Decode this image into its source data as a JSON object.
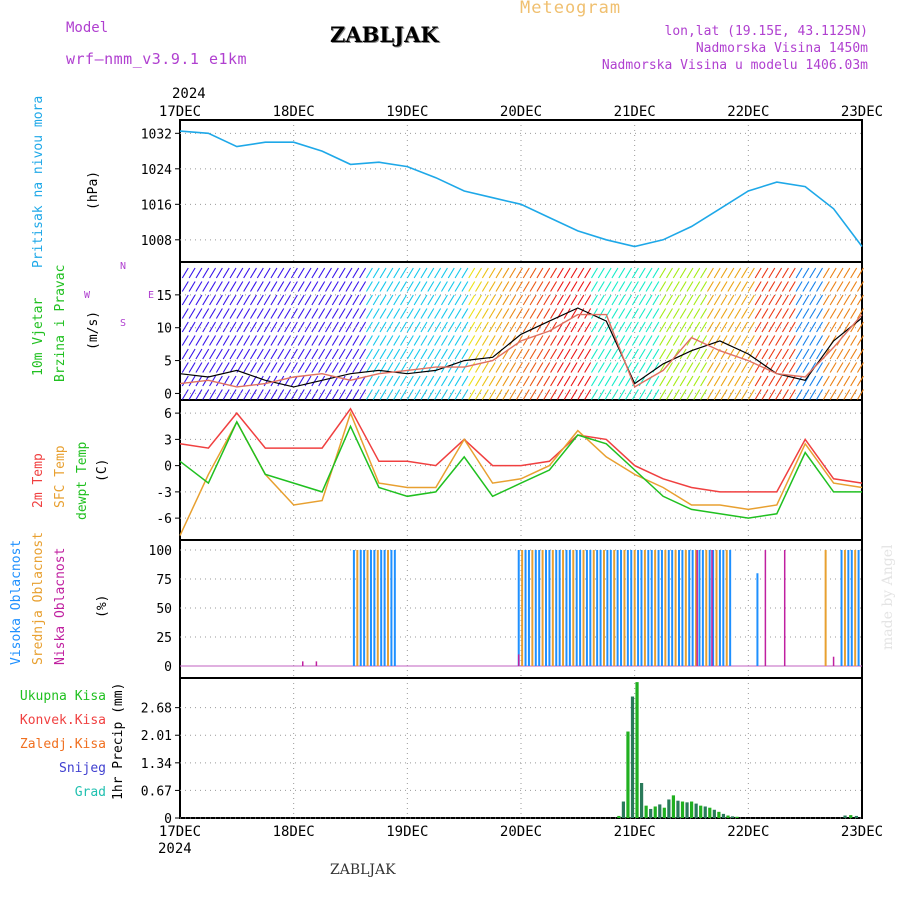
{
  "header": {
    "model_label": "Model",
    "model_name": "wrf–nmm_v3.9.1  e1km",
    "station": "ZABLJAK",
    "title": "Meteogram",
    "lonlat": "lon,lat (19.15E, 43.1125N)",
    "elevation": "Nadmorska Visina 1450m",
    "model_elevation": "Nadmorska Visina u modelu 1406.03m",
    "footer": "ZABLJAK",
    "made_by": "made by Angel"
  },
  "colors": {
    "pressure": "#1ea8e8",
    "temp2m": "#f04040",
    "sfc": "#e8a030",
    "dew": "#20c020",
    "high_cloud": "#1e90ff",
    "mid_cloud": "#e8a030",
    "low_cloud": "#c020a0",
    "precip_total": "#20b020",
    "precip_snow": "#4040d0"
  },
  "chart_data": [
    {
      "type": "line",
      "panel": "pressure",
      "ylabel": "Pritisak na nivou mora",
      "unit": "(hPa)",
      "x_ticks": [
        "17DEC",
        "18DEC",
        "19DEC",
        "20DEC",
        "21DEC",
        "22DEC",
        "23DEC"
      ],
      "year_top": "2024",
      "year_bottom": "2024",
      "yticks": [
        "1032",
        "1024",
        "1016",
        "1008"
      ],
      "ylim": [
        1003,
        1035
      ],
      "x": [
        0,
        0.25,
        0.5,
        0.75,
        1.0,
        1.25,
        1.5,
        1.75,
        2.0,
        2.25,
        2.5,
        2.75,
        3.0,
        3.25,
        3.5,
        3.75,
        4.0,
        4.25,
        4.5,
        4.75,
        5.0,
        5.25,
        5.5,
        5.75,
        6.0
      ],
      "series": [
        {
          "values": [
            1032.5,
            1032,
            1029,
            1030,
            1030,
            1028,
            1025,
            1025.5,
            1024.5,
            1022,
            1019,
            1017.5,
            1016,
            1013,
            1010,
            1008,
            1006.5,
            1008,
            1011,
            1015,
            1019,
            1021,
            1020,
            1015,
            1006.5
          ]
        }
      ]
    },
    {
      "type": "line",
      "panel": "wind",
      "ylabel_1": "10m Vjetar",
      "ylabel_2": "Brzina i Pravac",
      "unit": "(m/s)",
      "yticks": [
        "15",
        "10",
        "5",
        "0"
      ],
      "ylim": [
        -1,
        20
      ],
      "compass": [
        "N",
        "E",
        "S",
        "W"
      ],
      "x": [
        0,
        0.25,
        0.5,
        0.75,
        1.0,
        1.25,
        1.5,
        1.75,
        2.0,
        2.25,
        2.5,
        2.75,
        3.0,
        3.25,
        3.5,
        3.75,
        4.0,
        4.25,
        4.5,
        4.75,
        5.0,
        5.25,
        5.5,
        5.75,
        6.0
      ],
      "series": [
        {
          "values": [
            3.0,
            2.5,
            3.5,
            2.0,
            1.0,
            2.0,
            3.0,
            3.5,
            3.0,
            3.5,
            5.0,
            5.5,
            9.0,
            11.0,
            13.0,
            11.0,
            1.5,
            4.5,
            6.5,
            8.0,
            6.0,
            3.0,
            2.0,
            8.0,
            11.5
          ]
        },
        {
          "values": [
            1.5,
            2.0,
            1.0,
            1.5,
            2.5,
            3.0,
            2.0,
            3.0,
            3.5,
            4.0,
            4.0,
            5.0,
            8.0,
            9.5,
            12.0,
            12.0,
            1.0,
            3.5,
            8.5,
            6.5,
            5.0,
            3.0,
            2.5,
            7.0,
            12.0
          ]
        }
      ]
    },
    {
      "type": "line",
      "panel": "temperature",
      "labels": [
        "2m Temp",
        "SFC Temp",
        "dewpt Temp"
      ],
      "unit": "(C)",
      "yticks": [
        "6",
        "3",
        "0",
        "-3",
        "-6"
      ],
      "ylim": [
        -8.5,
        7.5
      ],
      "x": [
        0,
        0.25,
        0.5,
        0.75,
        1.0,
        1.25,
        1.5,
        1.75,
        2.0,
        2.25,
        2.5,
        2.75,
        3.0,
        3.25,
        3.5,
        3.75,
        4.0,
        4.25,
        4.5,
        4.75,
        5.0,
        5.25,
        5.5,
        5.75,
        6.0
      ],
      "series": [
        {
          "name": "2m Temp",
          "values": [
            2.5,
            2.0,
            6.0,
            2.0,
            2.0,
            2.0,
            6.5,
            0.5,
            0.5,
            0.0,
            3.0,
            0.0,
            0.0,
            0.5,
            3.5,
            3.0,
            0.0,
            -1.5,
            -2.5,
            -3.0,
            -3.0,
            -3.0,
            3.0,
            -1.5,
            -2.0
          ]
        },
        {
          "name": "SFC Temp",
          "values": [
            -8.0,
            -1.0,
            5.0,
            -1.0,
            -4.5,
            -4.0,
            6.0,
            -2.0,
            -2.5,
            -2.5,
            3.0,
            -2.0,
            -1.5,
            0.0,
            4.0,
            1.0,
            -1.0,
            -2.5,
            -4.5,
            -4.5,
            -5.0,
            -4.5,
            2.5,
            -2.0,
            -2.5
          ]
        },
        {
          "name": "dewpt Temp",
          "values": [
            0.5,
            -2.0,
            5.0,
            -1.0,
            -2.0,
            -3.0,
            4.5,
            -2.5,
            -3.5,
            -3.0,
            1.0,
            -3.5,
            -2.0,
            -0.5,
            3.5,
            2.5,
            -0.5,
            -3.5,
            -5.0,
            -5.5,
            -6.0,
            -5.5,
            1.5,
            -3.0,
            -3.0
          ]
        }
      ]
    },
    {
      "type": "bar",
      "panel": "clouds",
      "labels": [
        "Visoka Oblacnost",
        "Srednja Oblacnost",
        "Niska Oblacnost"
      ],
      "unit": "(%)",
      "yticks": [
        "100",
        "75",
        "50",
        "25",
        "0"
      ],
      "ylim": [
        0,
        100
      ],
      "bar_groups": [
        {
          "x_start": 1.53,
          "x_end": 1.9,
          "high": 100,
          "mid": 100
        },
        {
          "x_start": 2.98,
          "x_end": 4.85,
          "high": 100,
          "mid": 100
        },
        {
          "x_start": 5.82,
          "x_end": 6.0,
          "high": 100,
          "mid": 100
        }
      ],
      "low_cloud_spikes": [
        {
          "x": 1.08,
          "value": 4
        },
        {
          "x": 1.2,
          "value": 4
        },
        {
          "x": 2.98,
          "value": 10
        },
        {
          "x": 4.55,
          "value": 100
        },
        {
          "x": 4.68,
          "value": 100
        },
        {
          "x": 5.15,
          "value": 100
        },
        {
          "x": 5.32,
          "value": 100
        },
        {
          "x": 5.75,
          "value": 8
        }
      ],
      "isolated_bars": [
        {
          "x": 5.08,
          "color": "high",
          "value": 80
        },
        {
          "x": 5.68,
          "color": "mid",
          "value": 100
        }
      ]
    },
    {
      "type": "bar",
      "panel": "precip",
      "labels": [
        "Ukupna Kisa",
        "Konvek.Kisa",
        "Zaledj.Kisa",
        "Snijeg",
        "Grad"
      ],
      "label_colors": [
        "#20c020",
        "#f04040",
        "#f07020",
        "#4040d0",
        "#20c0b0"
      ],
      "ylabel": "1hr Precip (mm)",
      "yticks": [
        "2.68",
        "2.01",
        "1.34",
        "0.67",
        "0"
      ],
      "ylim": [
        0,
        3.4
      ],
      "x": [
        3.86,
        3.9,
        3.94,
        3.98,
        4.02,
        4.06,
        4.1,
        4.14,
        4.18,
        4.22,
        4.26,
        4.3,
        4.34,
        4.38,
        4.42,
        4.46,
        4.5,
        4.54,
        4.58,
        4.62,
        4.66,
        4.7,
        4.74,
        4.78,
        4.82,
        4.86,
        4.9,
        5.85,
        5.9,
        5.95
      ],
      "values": [
        0.05,
        0.4,
        2.1,
        2.95,
        3.3,
        0.85,
        0.3,
        0.22,
        0.28,
        0.33,
        0.25,
        0.45,
        0.55,
        0.42,
        0.4,
        0.38,
        0.4,
        0.35,
        0.3,
        0.28,
        0.25,
        0.2,
        0.15,
        0.1,
        0.06,
        0.04,
        0.03,
        0.06,
        0.07,
        0.05
      ]
    }
  ]
}
